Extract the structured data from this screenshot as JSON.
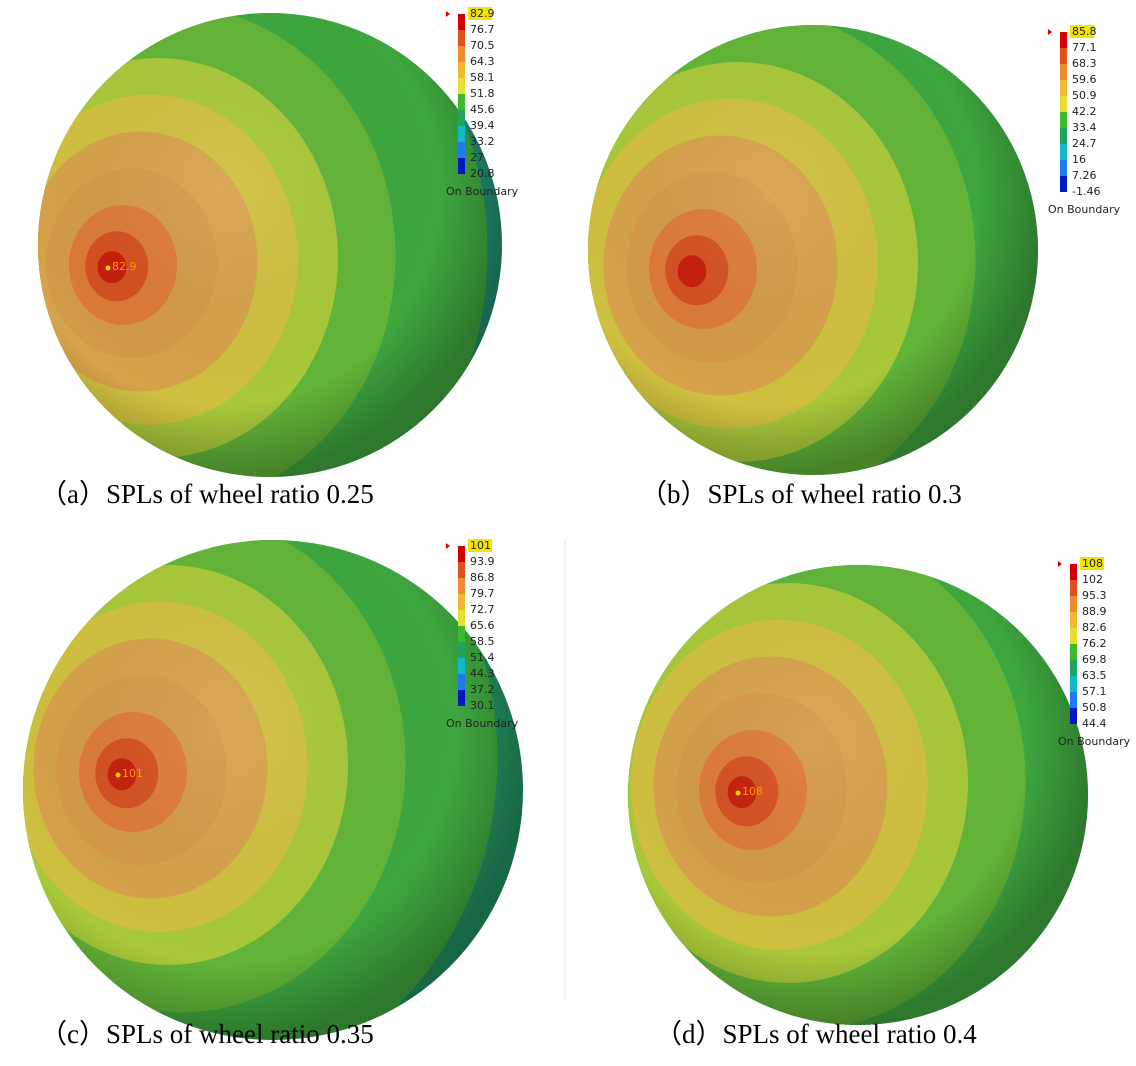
{
  "panels": [
    {
      "caption": "（a）SPLs of wheel ratio 0.25",
      "legend": {
        "max": "82.9",
        "values": [
          "76.7",
          "70.5",
          "64.3",
          "58.1",
          "51.8",
          "45.6",
          "39.4",
          "33.2",
          "27",
          "20.8"
        ],
        "boundary": "On Boundary"
      },
      "peak_label": "82.9"
    },
    {
      "caption": "（b）SPLs of wheel ratio 0.3",
      "legend": {
        "max": "85.8",
        "values": [
          "77.1",
          "68.3",
          "59.6",
          "50.9",
          "42.2",
          "33.4",
          "24.7",
          "16",
          "7.26",
          "-1.46"
        ],
        "boundary": "On Boundary"
      }
    },
    {
      "caption": "（c）SPLs of wheel ratio 0.35",
      "legend": {
        "max": "101",
        "values": [
          "93.9",
          "86.8",
          "79.7",
          "72.7",
          "65.6",
          "58.5",
          "51.4",
          "44.3",
          "37.2",
          "30.1"
        ],
        "boundary": "On Boundary"
      },
      "peak_label": "101"
    },
    {
      "caption": "（d）SPLs of wheel ratio 0.4",
      "legend": {
        "max": "108",
        "values": [
          "102",
          "95.3",
          "88.9",
          "82.6",
          "76.2",
          "69.8",
          "63.5",
          "57.1",
          "50.8",
          "44.4"
        ],
        "boundary": "On Boundary"
      },
      "peak_label": "108"
    }
  ]
}
